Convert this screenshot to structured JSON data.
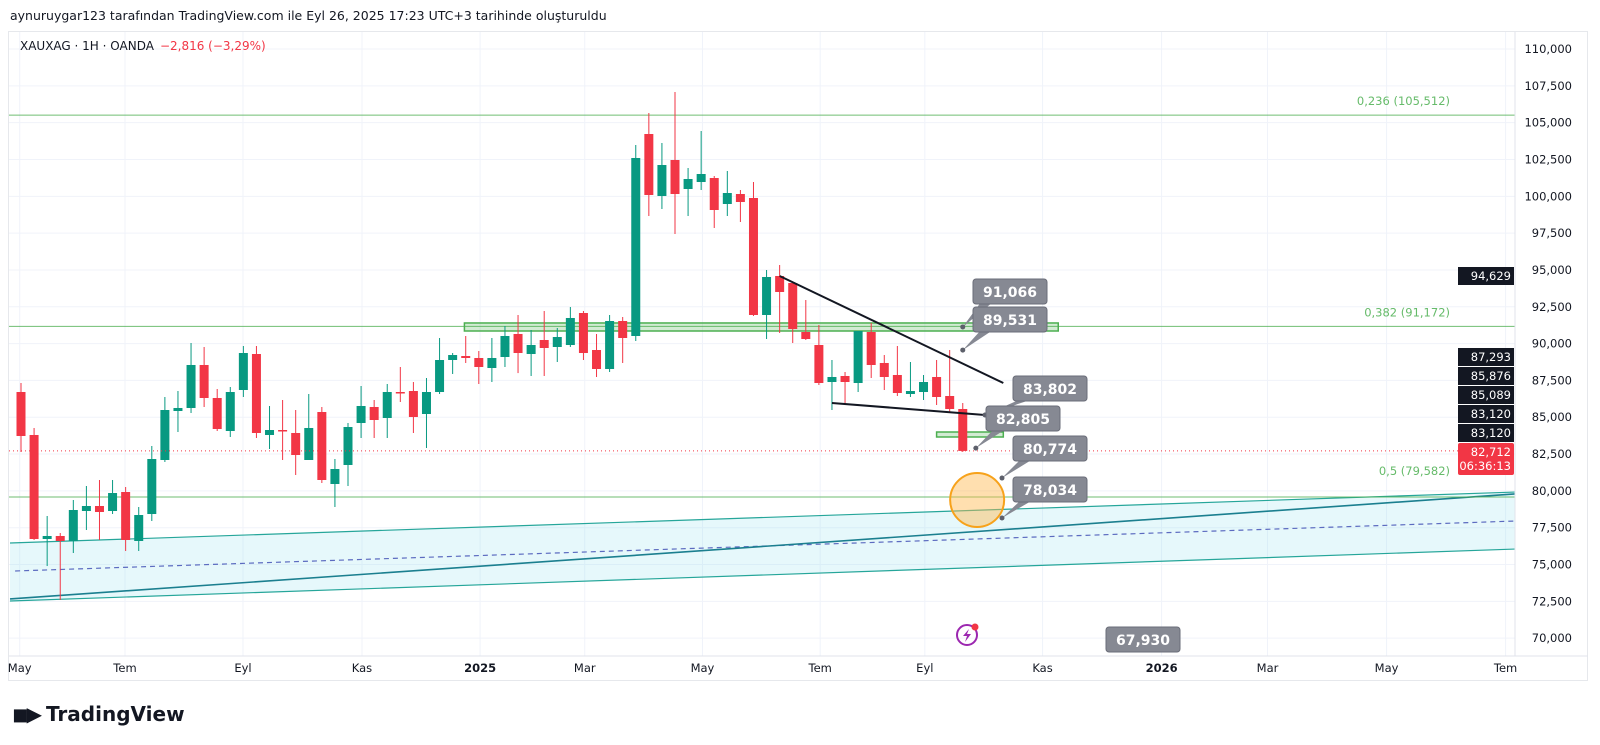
{
  "credit": "aynuruygar123 tarafından TradingView.com ile Eyl 26, 2025 17:23 UTC+3 tarihinde oluşturuldu",
  "legend": {
    "symbol": "XAUXAG · 1H · OANDA",
    "change": "−2,816 (−3,29%)"
  },
  "watermark": "TradingView",
  "colors": {
    "up": "#089981",
    "down": "#f23645",
    "fib": "#4caf50",
    "channel": "#26a69a",
    "callout": "#868993",
    "axis_box": "#131722"
  },
  "price_axis": [
    "110,000",
    "107,500",
    "105,000",
    "102,500",
    "100,000",
    "97,500",
    "95,000",
    "92,500",
    "90,000",
    "87,500",
    "85,000",
    "82,500",
    "80,000",
    "77,500",
    "75,000",
    "72,500",
    "70,000"
  ],
  "price_axis_values": [
    110000,
    107500,
    105000,
    102500,
    100000,
    97500,
    95000,
    92500,
    90000,
    87500,
    85000,
    82500,
    80000,
    77500,
    75000,
    72500,
    70000
  ],
  "time_axis": [
    {
      "label": "May",
      "week": -0.1,
      "bold": false
    },
    {
      "label": "Tem",
      "week": 7.95,
      "bold": false
    },
    {
      "label": "Eyl",
      "week": 16.97,
      "bold": false
    },
    {
      "label": "Kas",
      "week": 26.07,
      "bold": false
    },
    {
      "label": "2025",
      "week": 35.1,
      "bold": true
    },
    {
      "label": "Mar",
      "week": 43.1,
      "bold": false
    },
    {
      "label": "May",
      "week": 52.1,
      "bold": false
    },
    {
      "label": "Tem",
      "week": 61.1,
      "bold": false
    },
    {
      "label": "Eyl",
      "week": 69.1,
      "bold": false
    },
    {
      "label": "Kas",
      "week": 78.1,
      "bold": false
    },
    {
      "label": "2026",
      "week": 87.2,
      "bold": true
    },
    {
      "label": "Mar",
      "week": 95.3,
      "bold": false
    },
    {
      "label": "May",
      "week": 104.4,
      "bold": false
    },
    {
      "label": "Tem",
      "week": 113.5,
      "bold": false
    }
  ],
  "candles_ohlc": [
    [
      86713,
      87324,
      82639,
      83726
    ],
    [
      83794,
      84269,
      76664,
      76732
    ],
    [
      76732,
      78294,
      74897,
      76936
    ],
    [
      76936,
      77140,
      72590,
      76596
    ],
    [
      76596,
      79380,
      75781,
      78701
    ],
    [
      78633,
      80331,
      77343,
      78973
    ],
    [
      78973,
      80738,
      76664,
      78565
    ],
    [
      78633,
      80738,
      78429,
      79855
    ],
    [
      79923,
      80263,
      75917,
      76664
    ],
    [
      76596,
      78905,
      75917,
      78361
    ],
    [
      78429,
      83047,
      77954,
      82164
    ],
    [
      82096,
      86374,
      81960,
      85491
    ],
    [
      85423,
      86781,
      83997,
      85627
    ],
    [
      85627,
      90040,
      85287,
      88547
    ],
    [
      88547,
      89769,
      85695,
      86306
    ],
    [
      86306,
      86917,
      84065,
      84201
    ],
    [
      84065,
      87053,
      83658,
      86713
    ],
    [
      86849,
      89837,
      86374,
      89361
    ],
    [
      89293,
      89837,
      83590,
      83930
    ],
    [
      83794,
      85763,
      82843,
      84133
    ],
    [
      84133,
      86170,
      82096,
      84065
    ],
    [
      83930,
      85491,
      81077,
      82435
    ],
    [
      82096,
      86577,
      82096,
      84269
    ],
    [
      85355,
      85695,
      80534,
      80738
    ],
    [
      80466,
      82164,
      78905,
      81485
    ],
    [
      81757,
      84608,
      80331,
      84337
    ],
    [
      84608,
      87121,
      83590,
      85763
    ],
    [
      85695,
      86170,
      83590,
      84812
    ],
    [
      84948,
      87256,
      83590,
      86713
    ],
    [
      86713,
      88411,
      86034,
      86645
    ],
    [
      86781,
      87392,
      83930,
      85016
    ],
    [
      85219,
      87664,
      82911,
      86713
    ],
    [
      86713,
      90380,
      86577,
      88886
    ],
    [
      88886,
      89361,
      87936,
      89225
    ],
    [
      89157,
      90516,
      88683,
      89022
    ],
    [
      89022,
      89497,
      87256,
      88411
    ],
    [
      88343,
      90380,
      87392,
      89022
    ],
    [
      89090,
      91195,
      88411,
      90516
    ],
    [
      90652,
      91942,
      87998,
      89361
    ],
    [
      89293,
      90923,
      87800,
      89904
    ],
    [
      90244,
      92213,
      87800,
      89701
    ],
    [
      89769,
      91059,
      88750,
      90448
    ],
    [
      89904,
      92485,
      89769,
      91738
    ],
    [
      92077,
      92213,
      88886,
      89361
    ],
    [
      89565,
      90652,
      87732,
      88275
    ],
    [
      88275,
      91942,
      88071,
      91534
    ],
    [
      91534,
      91806,
      88683,
      90380
    ],
    [
      90516,
      103485,
      90176,
      102602
    ],
    [
      104231,
      105657,
      98664,
      100090
    ],
    [
      100022,
      103620,
      99139,
      102126
    ],
    [
      102466,
      107083,
      97441,
      100157
    ],
    [
      100497,
      101923,
      98664,
      101176
    ],
    [
      100972,
      104435,
      100429,
      101515
    ],
    [
      101243,
      101380,
      97849,
      99071
    ],
    [
      99478,
      101719,
      98664,
      100225
    ],
    [
      100157,
      100429,
      98256,
      99614
    ],
    [
      99886,
      100972,
      91874,
      91942
    ],
    [
      91942,
      94997,
      90312,
      94522
    ],
    [
      94590,
      95337,
      90719,
      93504
    ],
    [
      94115,
      94115,
      90040,
      90991
    ],
    [
      90787,
      92960,
      90244,
      90312
    ],
    [
      89904,
      91262,
      87188,
      87324
    ],
    [
      87392,
      88886,
      85491,
      87732
    ],
    [
      87800,
      88071,
      85831,
      87392
    ],
    [
      87324,
      90855,
      86713,
      90855
    ],
    [
      90787,
      91398,
      87664,
      88547
    ],
    [
      88683,
      89225,
      86849,
      87732
    ],
    [
      87868,
      89837,
      86442,
      86645
    ],
    [
      86577,
      88750,
      86374,
      86781
    ],
    [
      86713,
      87868,
      86170,
      87392
    ],
    [
      87732,
      88886,
      85831,
      86374
    ],
    [
      86442,
      89565,
      85355,
      85559
    ],
    [
      85559,
      85966,
      82639,
      82712
    ]
  ],
  "fib_levels": [
    {
      "label": "0,236 (105,512)",
      "price": 105512
    },
    {
      "label": "0,382 (91,172)",
      "price": 91172
    },
    {
      "label": "0,5 (79,582)",
      "price": 79582
    }
  ],
  "trend_lines": [
    {
      "from": {
        "week": 58.0,
        "price": 94590
      },
      "to": {
        "week": 75.1,
        "price": 87324
      }
    },
    {
      "from": {
        "week": 62.0,
        "price": 85966
      },
      "to": {
        "week": 73.7,
        "price": 85150
      }
    }
  ],
  "zones": [
    {
      "from_week": 33.9,
      "to_week": 79.3,
      "top": 91400,
      "bottom": 90855
    },
    {
      "from_week": 70.0,
      "to_week": 75.1,
      "top": 83997,
      "bottom": 83658
    }
  ],
  "channel": {
    "upper": {
      "from": {
        "week": -0.84,
        "price": 76460
      },
      "to": {
        "week": 114.2,
        "price": 79920
      }
    },
    "lower": {
      "from": {
        "week": -0.84,
        "price": 72520
      },
      "to": {
        "week": 114.2,
        "price": 76050
      }
    },
    "median": {
      "from": {
        "week": -0.45,
        "price": 74560
      },
      "to": {
        "week": 114.2,
        "price": 77950
      }
    },
    "trend": {
      "from": {
        "week": -0.84,
        "price": 72660
      },
      "to": {
        "week": 114.2,
        "price": 79790
      }
    }
  },
  "target_circle": {
    "week": 73.1,
    "price": 79380
  },
  "callouts": [
    {
      "value": "91,066",
      "anchor": {
        "week": 72.0,
        "price": 91130
      }
    },
    {
      "value": "89,531",
      "anchor": {
        "week": 72.0,
        "price": 89560
      }
    },
    {
      "value": "83,802",
      "anchor": {
        "week": 73.7,
        "price": 85150
      }
    },
    {
      "value": "82,805",
      "anchor": {
        "week": 73.0,
        "price": 82900
      }
    },
    {
      "value": "80,774",
      "anchor": {
        "week": 75.0,
        "price": 80870
      }
    },
    {
      "value": "78,034",
      "anchor": {
        "week": 75.0,
        "price": 78160
      }
    },
    {
      "value": "67,930",
      "anchor": null
    }
  ],
  "axis_markers": [
    {
      "value": "94,629",
      "price": 94629
    },
    {
      "value": "87,293",
      "price": 87293
    },
    {
      "value": "85,876",
      "price": 85876
    },
    {
      "value": "85,089",
      "price": 85089
    },
    {
      "value": "83,120",
      "price": 83120
    },
    {
      "value": "83,120",
      "price": 83120
    }
  ],
  "last_price": {
    "value": "82,712",
    "price": 82712,
    "countdown": "06:36:13"
  }
}
